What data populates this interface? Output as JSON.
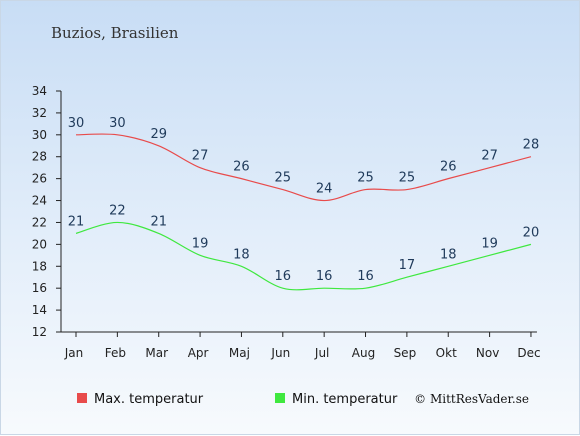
{
  "chart_data": {
    "type": "line",
    "title": "Buzios, Brasilien",
    "categories": [
      "Jan",
      "Feb",
      "Mar",
      "Apr",
      "Maj",
      "Jun",
      "Jul",
      "Aug",
      "Sep",
      "Okt",
      "Nov",
      "Dec"
    ],
    "series": [
      {
        "name": "Max. temperatur",
        "color": "#e84b4b",
        "values": [
          30,
          30,
          29,
          27,
          26,
          25,
          24,
          25,
          25,
          26,
          27,
          28
        ]
      },
      {
        "name": "Min. temperatur",
        "color": "#3fe83f",
        "values": [
          21,
          22,
          21,
          19,
          18,
          16,
          16,
          16,
          17,
          18,
          19,
          20
        ]
      }
    ],
    "ylim": [
      12,
      34
    ],
    "yticks": [
      12,
      14,
      16,
      18,
      20,
      22,
      24,
      26,
      28,
      30,
      32,
      34
    ],
    "xlabel": "",
    "ylabel": "",
    "grid": false,
    "legend": "bottom"
  },
  "credit": "© MittResVader.se"
}
